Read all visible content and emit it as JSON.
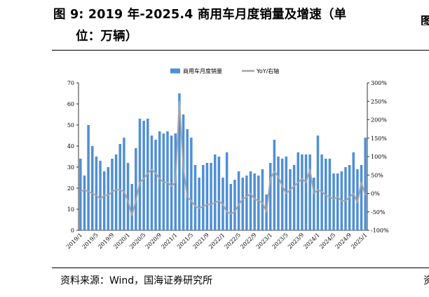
{
  "header": {
    "title_line1": "图 9:  2019 年-2025.4 商用车月度销量及增速（单",
    "title_line2": "位：万辆）",
    "right_clip": "图"
  },
  "footer": {
    "source": "资料来源：Wind，国海证券研究所",
    "right_clip": "资"
  },
  "chart_data": {
    "type": "bar",
    "title": "",
    "legend": [
      "商用车月度销量",
      "YoY/右轴"
    ],
    "legend_position": "top-center",
    "colors": {
      "bar": "#4f8fd6",
      "line": "#a6a6a6"
    },
    "y_left": {
      "min": 0,
      "max": 70,
      "ticks": [
        "0",
        "10",
        "20",
        "30",
        "40",
        "50",
        "60",
        "70"
      ]
    },
    "y_right": {
      "min": -100,
      "max": 300,
      "ticks": [
        "-100%",
        "-50%",
        "0%",
        "50%",
        "100%",
        "150%",
        "200%",
        "250%",
        "300%"
      ]
    },
    "x_labels": [
      "2019/1",
      "2019/5",
      "2019/9",
      "2020/1",
      "2020/5",
      "2020/9",
      "2021/1",
      "2021/5",
      "2021/9",
      "2022/1",
      "2022/5",
      "2022/9",
      "2023/1",
      "2023/5",
      "2023/9",
      "2024/1",
      "2024/5",
      "2024/9",
      "2025/1"
    ],
    "x_label_start_indices": [
      0,
      4,
      8,
      12,
      16,
      20,
      24,
      28,
      32,
      36,
      40,
      44,
      48,
      52,
      56,
      60,
      64,
      68,
      72
    ],
    "series": [
      {
        "name": "商用车月度销量",
        "type": "bar",
        "axis": "left",
        "values": [
          34,
          26,
          50,
          40,
          35,
          33,
          28,
          30,
          34,
          36,
          41,
          44,
          32,
          22,
          39,
          53,
          52,
          53,
          45,
          43,
          47,
          46,
          47,
          45,
          46,
          65,
          55,
          48,
          44,
          31,
          25,
          31,
          32,
          32,
          36,
          35,
          25,
          37,
          22,
          24,
          28,
          25,
          26,
          28,
          27,
          26,
          29,
          17,
          32,
          43,
          35,
          34,
          35,
          29,
          31,
          37,
          36,
          36,
          36,
          25,
          45,
          36,
          34,
          34,
          27,
          27,
          28,
          30,
          31,
          37,
          29,
          31,
          44
        ]
      },
      {
        "name": "YoY/右轴",
        "type": "line",
        "axis": "right",
        "values": [
          5,
          10,
          5,
          0,
          -5,
          -15,
          -5,
          -5,
          5,
          10,
          10,
          5,
          -20,
          -60,
          -20,
          30,
          40,
          55,
          65,
          55,
          40,
          30,
          30,
          20,
          30,
          250,
          70,
          -10,
          -20,
          -35,
          -40,
          -35,
          -30,
          -30,
          -25,
          -20,
          -30,
          -50,
          -55,
          -50,
          -30,
          -15,
          -10,
          0,
          -15,
          -20,
          -25,
          -50,
          40,
          60,
          45,
          20,
          0,
          10,
          20,
          30,
          40,
          30,
          65,
          0,
          10,
          5,
          -5,
          -10,
          -15,
          -10,
          -20,
          -20,
          -10,
          0,
          -25,
          30,
          -5
        ]
      }
    ]
  }
}
